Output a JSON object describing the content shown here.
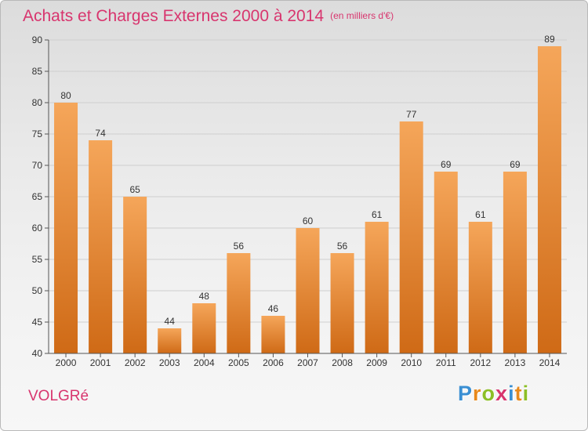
{
  "header": {
    "title": "Achats et Charges Externes 2000 à 2014",
    "subtitle": "(en milliers d'€)"
  },
  "footer": {
    "town": "VOLGRé",
    "logo": {
      "text": "Proxiti",
      "letters": [
        {
          "char": "P",
          "color": "#3a8fd3"
        },
        {
          "char": "r",
          "color": "#e8891c"
        },
        {
          "char": "o",
          "color": "#8cbf26"
        },
        {
          "char": "x",
          "color": "#d8356e"
        },
        {
          "char": "i",
          "color": "#3a8fd3"
        },
        {
          "char": "t",
          "color": "#e8891c"
        },
        {
          "char": "i",
          "color": "#8cbf26"
        }
      ]
    }
  },
  "colors": {
    "bar_top": "#f5a65a",
    "bar_bottom": "#cf6a16",
    "title": "#d8356e",
    "grid": "#cfcfcf",
    "axis": "#555555",
    "text": "#333333"
  },
  "chart_data": {
    "type": "bar",
    "title": "Achats et Charges Externes 2000 à 2014",
    "subtitle": "(en milliers d'€)",
    "categories": [
      "2000",
      "2001",
      "2002",
      "2003",
      "2004",
      "2005",
      "2006",
      "2007",
      "2008",
      "2009",
      "2010",
      "2011",
      "2012",
      "2013",
      "2014"
    ],
    "values": [
      80,
      74,
      65,
      44,
      48,
      56,
      46,
      60,
      56,
      61,
      77,
      69,
      61,
      69,
      89
    ],
    "ylim": [
      40,
      90
    ],
    "yticks": [
      40,
      45,
      50,
      55,
      60,
      65,
      70,
      75,
      80,
      85,
      90
    ],
    "grid": true,
    "show_data_labels": true,
    "xlabel": "",
    "ylabel": ""
  }
}
